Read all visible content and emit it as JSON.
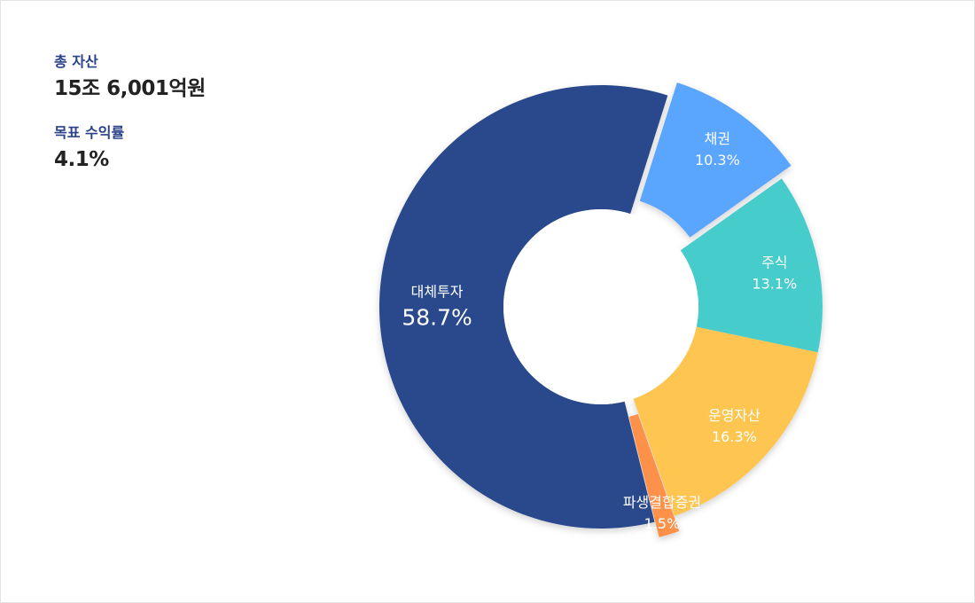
{
  "summary": {
    "total_assets_label": "총 자산",
    "total_assets_value": "15조 6,001억원",
    "target_return_label": "목표 수익률",
    "target_return_value": "4.1%"
  },
  "chart_data": {
    "type": "pie",
    "variant": "donut",
    "title": "",
    "categories": [
      "대체투자",
      "채권",
      "주식",
      "운영자산",
      "파생결합증권"
    ],
    "values": [
      58.7,
      10.3,
      13.1,
      16.3,
      1.5
    ],
    "value_labels": [
      "58.7%",
      "10.3%",
      "13.1%",
      "16.3%",
      "1.5%"
    ],
    "colors": [
      "#2b4a8c",
      "#5aa5fe",
      "#47cccc",
      "#fec551",
      "#fe914a"
    ],
    "exploded": [
      false,
      true,
      false,
      false,
      true
    ]
  }
}
